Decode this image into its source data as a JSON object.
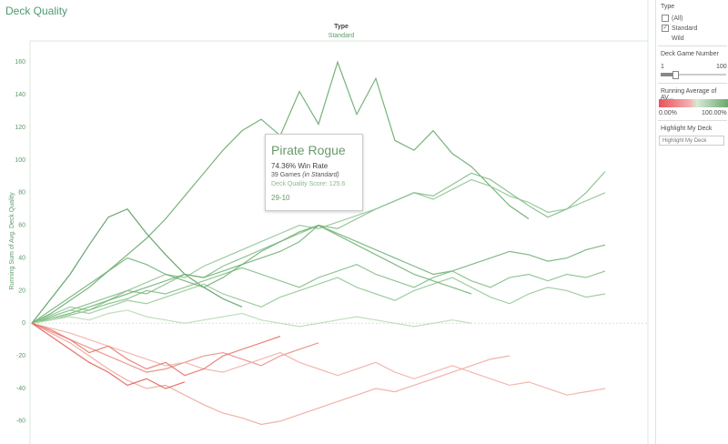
{
  "title": "Deck Quality",
  "chart_data": {
    "type": "line",
    "facet_label": "Type",
    "facet_value": "Standard",
    "y_label": "Running Sum of Avg. Deck Quality",
    "ylim": [
      -74,
      173
    ],
    "yticks": [
      -60,
      -40,
      -20,
      0,
      20,
      40,
      60,
      80,
      100,
      120,
      140,
      160
    ],
    "zero_line": true,
    "series": [
      {
        "color": "#5fa463",
        "values": [
          0,
          6,
          14,
          22,
          32,
          42,
          52,
          64,
          78,
          92,
          106,
          118,
          125,
          115,
          142,
          122,
          160,
          128,
          150,
          112,
          106,
          118,
          104,
          96,
          84,
          72,
          64
        ]
      },
      {
        "color": "#4e9457",
        "values": [
          0,
          15,
          30,
          48,
          65,
          70,
          55,
          42,
          30,
          22,
          15,
          10
        ]
      },
      {
        "color": "#7cb97f",
        "values": [
          0,
          4,
          8,
          12,
          16,
          20,
          18,
          24,
          30,
          28,
          35,
          40,
          45,
          50,
          55,
          60,
          58,
          64,
          70,
          75,
          80,
          78,
          85,
          92,
          88,
          80,
          72,
          65,
          70,
          80,
          93
        ]
      },
      {
        "color": "#8cc28e",
        "values": [
          0,
          5,
          10,
          8,
          14,
          20,
          25,
          30,
          28,
          35,
          40,
          45,
          50,
          55,
          60,
          58,
          62,
          66,
          70,
          75,
          80,
          76,
          82,
          88,
          84,
          78,
          74,
          68,
          70,
          75,
          80
        ]
      },
      {
        "color": "#6aae6e",
        "values": [
          0,
          3,
          6,
          10,
          14,
          18,
          22,
          26,
          30,
          28,
          32,
          36,
          40,
          44,
          50,
          60,
          55,
          50,
          45,
          40,
          35,
          30,
          32,
          36,
          40,
          44,
          42,
          38,
          40,
          45,
          48
        ]
      },
      {
        "color": "#7fbb82",
        "values": [
          0,
          2,
          5,
          8,
          12,
          15,
          20,
          18,
          22,
          26,
          30,
          34,
          30,
          26,
          22,
          28,
          32,
          36,
          30,
          26,
          22,
          28,
          32,
          26,
          22,
          28,
          30,
          26,
          30,
          28,
          32
        ]
      },
      {
        "color": "#8fc591",
        "values": [
          0,
          4,
          8,
          6,
          10,
          14,
          12,
          16,
          20,
          24,
          18,
          14,
          10,
          16,
          20,
          24,
          28,
          22,
          18,
          14,
          20,
          24,
          28,
          22,
          16,
          12,
          18,
          22,
          20,
          16,
          18
        ]
      },
      {
        "color": "#b5d8b0",
        "values": [
          0,
          2,
          4,
          2,
          6,
          8,
          4,
          2,
          0,
          2,
          4,
          6,
          2,
          0,
          -2,
          0,
          2,
          4,
          2,
          0,
          -2,
          0,
          2,
          0
        ]
      },
      {
        "color": "#6aae6e",
        "values": [
          0,
          8,
          16,
          24,
          32,
          40,
          36,
          30,
          26,
          22,
          28,
          36,
          44,
          50,
          56,
          60,
          54,
          48,
          42,
          36,
          30,
          26,
          22,
          18
        ]
      },
      {
        "color": "#e8857a",
        "values": [
          0,
          -5,
          -10,
          -15,
          -20,
          -25,
          -30,
          -28,
          -24,
          -20,
          -18,
          -22,
          -26,
          -20,
          -16,
          -12
        ]
      },
      {
        "color": "#f0a39a",
        "values": [
          0,
          -6,
          -12,
          -20,
          -28,
          -35,
          -40,
          -38,
          -44,
          -50,
          -55,
          -58,
          -62,
          -60,
          -56,
          -52,
          -48,
          -44,
          -40,
          -42,
          -38,
          -34,
          -30,
          -26,
          -22,
          -20
        ]
      },
      {
        "color": "#f2aaa2",
        "values": [
          0,
          -3,
          -6,
          -10,
          -14,
          -18,
          -22,
          -26,
          -24,
          -28,
          -30,
          -26,
          -22,
          -18,
          -24,
          -28,
          -32,
          -28,
          -24,
          -30,
          -34,
          -30,
          -26,
          -30,
          -34,
          -38,
          -36,
          -40,
          -44,
          -42,
          -40
        ]
      },
      {
        "color": "#e0574c",
        "values": [
          0,
          -8,
          -16,
          -24,
          -30,
          -38,
          -34,
          -40,
          -36
        ]
      },
      {
        "color": "#e66e62",
        "values": [
          0,
          -4,
          -10,
          -18,
          -14,
          -22,
          -28,
          -24,
          -32,
          -28,
          -20,
          -16,
          -12,
          -8
        ]
      }
    ]
  },
  "tooltip": {
    "title": "Pirate Rogue",
    "win_rate": "74.36% Win Rate",
    "games": "39 Games",
    "games_note": "(in Standard)",
    "score": "Deck Quality Score: 125.6",
    "record": "29-10"
  },
  "panel": {
    "type_title": "Type",
    "options": [
      "(All)",
      "Standard",
      "Wild"
    ],
    "slider_title": "Deck Game Number",
    "slider_min": "1",
    "slider_max": "100",
    "legend_title": "Running Average of AV...",
    "legend_min": "0.00%",
    "legend_max": "100.00%",
    "highlight_title": "Highlight My Deck",
    "highlight_placeholder": "Highlight My Deck"
  }
}
